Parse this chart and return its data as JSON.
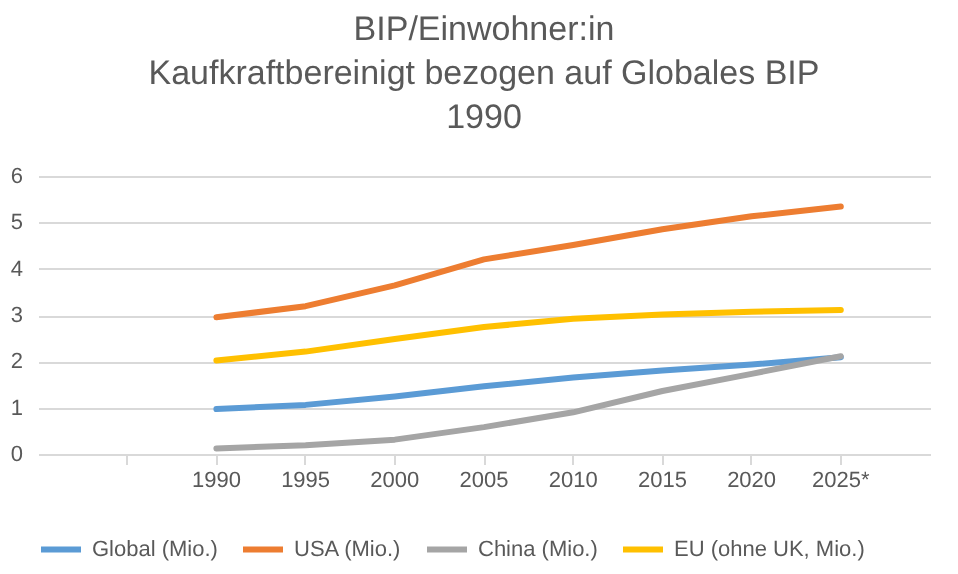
{
  "chart_data": {
    "type": "line",
    "title": [
      "BIP/Einwohner:in",
      "Kaufkraftbereinigt bezogen auf Globales BIP",
      "1990"
    ],
    "categories": [
      null,
      "1990",
      "1995",
      "2000",
      "2005",
      "2010",
      "2015",
      "2020",
      "2025*"
    ],
    "series": [
      {
        "name": "Global (Mio.)",
        "color": "#5b9bd5",
        "values": [
          null,
          0.97,
          1.06,
          1.24,
          1.46,
          1.65,
          1.8,
          1.93,
          2.09
        ]
      },
      {
        "name": "USA (Mio.)",
        "color": "#ed7d31",
        "values": [
          null,
          2.95,
          3.19,
          3.64,
          4.2,
          4.51,
          4.85,
          5.13,
          5.34
        ]
      },
      {
        "name": "China (Mio.)",
        "color": "#a5a5a5",
        "values": [
          null,
          0.12,
          0.19,
          0.31,
          0.58,
          0.9,
          1.36,
          1.73,
          2.11
        ]
      },
      {
        "name": "EU (ohne UK, Mio.)",
        "color": "#ffc000",
        "values": [
          null,
          2.02,
          2.21,
          2.48,
          2.74,
          2.92,
          3.01,
          3.07,
          3.11
        ]
      }
    ],
    "ylim": [
      0,
      6
    ],
    "yticks": [
      0,
      1,
      2,
      3,
      4,
      5,
      6
    ],
    "grid": "y",
    "legend": "bottom",
    "marker": "none",
    "line_style": "solid"
  }
}
